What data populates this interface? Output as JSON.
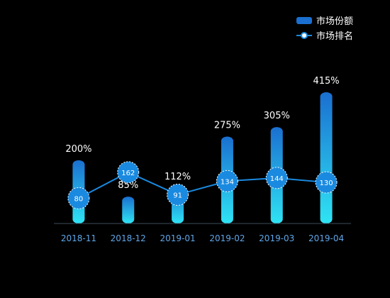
{
  "chart_data": {
    "type": "bar",
    "categories": [
      "2018-11",
      "2018-12",
      "2019-01",
      "2019-02",
      "2019-03",
      "2019-04"
    ],
    "series": [
      {
        "name": "市场份额",
        "type": "bar",
        "values": [
          200,
          85,
          112,
          275,
          305,
          415
        ],
        "labels": [
          "200%",
          "85%",
          "112%",
          "275%",
          "305%",
          "415%"
        ],
        "color_top": "#1a6fd0",
        "color_bottom": "#2fe4f4"
      },
      {
        "name": "市场排名",
        "type": "line",
        "values": [
          80,
          162,
          91,
          134,
          144,
          130
        ],
        "labels": [
          "80",
          "162",
          "91",
          "134",
          "144",
          "130"
        ],
        "color": "#1a8ae0"
      }
    ],
    "ylim": [
      0,
      460
    ],
    "legend_position": "top-right",
    "grid": false,
    "axis_color": "#3c4a5a",
    "label_color": "#5fa6e8"
  }
}
